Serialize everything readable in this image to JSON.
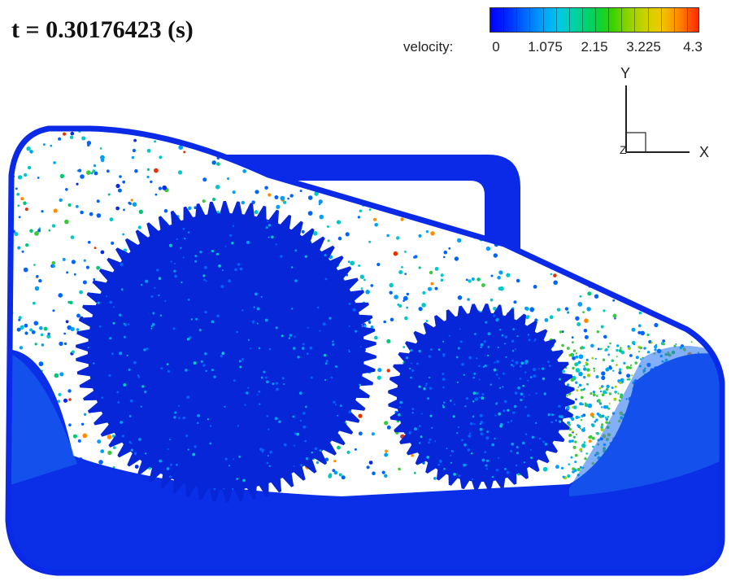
{
  "time_label": "t = 0.30176423 (s)",
  "colorbar": {
    "title": "velocity:",
    "ticks": [
      "0",
      "1.075",
      "2.15",
      "3.225",
      "4.3"
    ],
    "min": 0,
    "max": 4.3
  },
  "axes_triad": {
    "y_label": "Y",
    "x_label": "X",
    "z_label": "Z"
  },
  "colors": {
    "fluid": "#0a2fe6",
    "gear": "#0626d8",
    "housing": "#0a2ae8",
    "background": "#ffffff"
  }
}
